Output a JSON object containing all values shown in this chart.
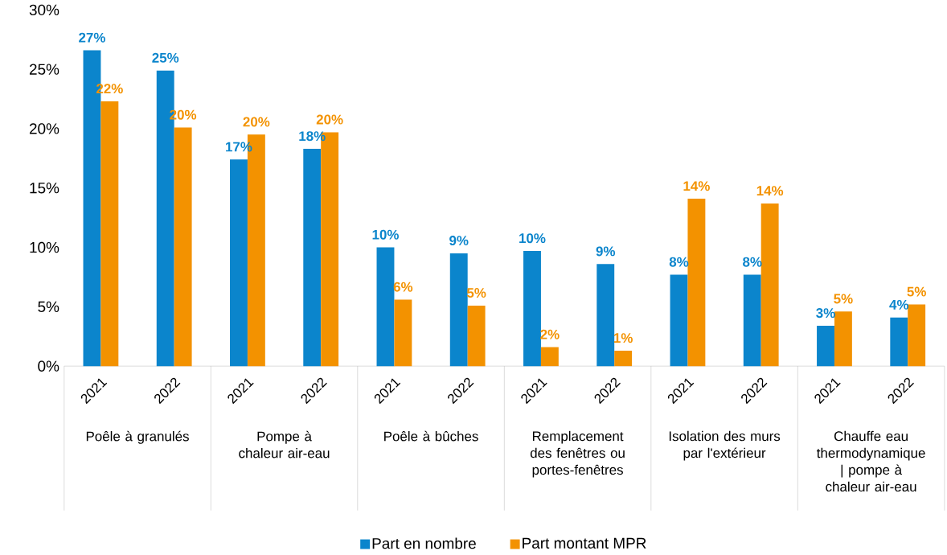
{
  "chart_data": {
    "type": "bar",
    "categories": [
      "2021",
      "2022",
      "2021",
      "2022",
      "2021",
      "2022",
      "2021",
      "2022",
      "2021",
      "2022",
      "2021",
      "2022"
    ],
    "series": [
      {
        "name": "Part en nombre",
        "color": "#0b85cc",
        "values": [
          26.6,
          24.9,
          17.4,
          18.3,
          10.0,
          9.5,
          9.7,
          8.6,
          7.7,
          7.7,
          3.4,
          4.1
        ],
        "value_labels": [
          "27%",
          "25%",
          "17%",
          "18%",
          "10%",
          "9%",
          "10%",
          "9%",
          "8%",
          "8%",
          "3%",
          "4%"
        ]
      },
      {
        "name": "Part montant MPR",
        "color": "#f39200",
        "values": [
          22.3,
          20.1,
          19.5,
          19.7,
          5.6,
          5.1,
          1.6,
          1.3,
          14.1,
          13.7,
          4.6,
          5.2
        ],
        "value_labels": [
          "22%",
          "20%",
          "20%",
          "20%",
          "6%",
          "5%",
          "2%",
          "1%",
          "14%",
          "14%",
          "5%",
          "5%"
        ]
      }
    ],
    "annotations": [
      "Poêle à granulés",
      "Pompe à chaleur air-eau",
      "Poêle à bûches",
      "Remplacement des fenêtres ou portes-fenêtres",
      "Isolation des murs par l'extérieur",
      "Chauffe eau thermodynamique | pompe à chaleur air-eau"
    ],
    "ylim": [
      0,
      30
    ],
    "yticks": [
      {
        "value": 0,
        "label": "0%"
      },
      {
        "value": 5,
        "label": "5%"
      },
      {
        "value": 10,
        "label": "10%"
      },
      {
        "value": 15,
        "label": "15%"
      },
      {
        "value": 20,
        "label": "20%"
      },
      {
        "value": 25,
        "label": "25%"
      },
      {
        "value": 30,
        "label": "30%"
      }
    ],
    "legend": "bottom",
    "grid": false
  }
}
